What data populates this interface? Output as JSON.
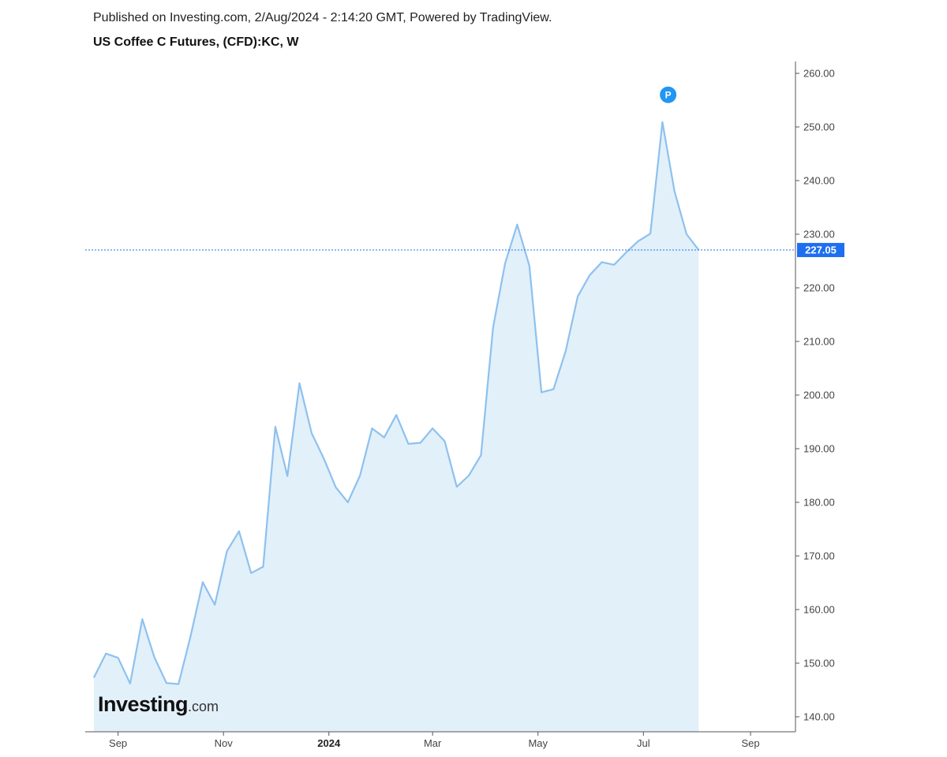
{
  "header": {
    "published": "Published on Investing.com, 2/Aug/2024 - 2:14:20 GMT, Powered by TradingView.",
    "symbol": "US Coffee C Futures, (CFD):KC, W"
  },
  "logo": {
    "main": "Investing",
    "suffix": ".com"
  },
  "colors": {
    "line": "#8ec1ee",
    "fill": "#e2f0fa",
    "price_tag": "#1e6ff0",
    "marker": "#2196f3",
    "axis": "#555555"
  },
  "chart_data": {
    "type": "area",
    "ylim": [
      137,
      262
    ],
    "yticks": [
      "260.00",
      "250.00",
      "240.00",
      "230.00",
      "220.00",
      "210.00",
      "200.00",
      "190.00",
      "180.00",
      "170.00",
      "160.00",
      "150.00",
      "140.00"
    ],
    "ytick_values": [
      260,
      250,
      240,
      230,
      220,
      210,
      200,
      190,
      180,
      170,
      160,
      150,
      140
    ],
    "xticks": [
      {
        "label": "Sep",
        "date": "2023-09-01",
        "bold": false
      },
      {
        "label": "Nov",
        "date": "2023-11-01",
        "bold": false
      },
      {
        "label": "2024",
        "date": "2024-01-01",
        "bold": true
      },
      {
        "label": "Mar",
        "date": "2024-03-01",
        "bold": false
      },
      {
        "label": "May",
        "date": "2024-05-01",
        "bold": false
      },
      {
        "label": "Jul",
        "date": "2024-07-01",
        "bold": false
      },
      {
        "label": "Sep",
        "date": "2024-09-01",
        "bold": false
      }
    ],
    "xlim": [
      "2023-08-13",
      "2024-09-27"
    ],
    "last_price": "227.05",
    "last_value": 227.05,
    "marker_label": "P",
    "marker_date": "2024-07-08",
    "marker_value": 253.5,
    "series": [
      {
        "dates": [
          "2023-08-18",
          "2023-08-25",
          "2023-09-01",
          "2023-09-08",
          "2023-09-15",
          "2023-09-22",
          "2023-09-29",
          "2023-10-06",
          "2023-10-13",
          "2023-10-20",
          "2023-10-27",
          "2023-11-03",
          "2023-11-10",
          "2023-11-17",
          "2023-11-24",
          "2023-12-01",
          "2023-12-08",
          "2023-12-15",
          "2023-12-22",
          "2023-12-29",
          "2024-01-05",
          "2024-01-12",
          "2024-01-19",
          "2024-01-26",
          "2024-02-02",
          "2024-02-09",
          "2024-02-16",
          "2024-02-23",
          "2024-03-01",
          "2024-03-08",
          "2024-03-15",
          "2024-03-22",
          "2024-03-29",
          "2024-04-05",
          "2024-04-12",
          "2024-04-19",
          "2024-04-26",
          "2024-05-03",
          "2024-05-10",
          "2024-05-17",
          "2024-05-24",
          "2024-05-31",
          "2024-06-07",
          "2024-06-14",
          "2024-06-21",
          "2024-06-28",
          "2024-07-05",
          "2024-07-12",
          "2024-07-19",
          "2024-07-26",
          "2024-08-02"
        ],
        "values": [
          147.3,
          151.8,
          151.0,
          146.2,
          158.2,
          151.1,
          146.3,
          146.1,
          155.1,
          165.1,
          160.9,
          170.9,
          174.6,
          166.8,
          168.0,
          194.1,
          184.9,
          202.2,
          192.9,
          188.2,
          182.8,
          180.0,
          185.0,
          193.8,
          192.1,
          196.3,
          190.9,
          191.1,
          193.8,
          191.4,
          182.9,
          185.0,
          188.8,
          212.6,
          224.6,
          231.8,
          224.1,
          200.5,
          201.1,
          208.2,
          218.4,
          222.4,
          224.8,
          224.3,
          226.6,
          228.7,
          230.1,
          250.9,
          238.0,
          230.0,
          227.05
        ]
      }
    ]
  }
}
